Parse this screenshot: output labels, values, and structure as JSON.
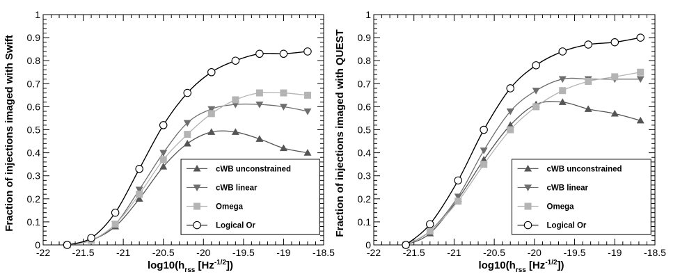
{
  "chart_data": [
    {
      "type": "line",
      "ylabel": "Fraction of injections imaged with Swift",
      "xlabel": {
        "pre": "log10(h",
        "sub": "rss",
        "mid": " [Hz",
        "sup": "-1/2",
        "post": "])"
      },
      "xlim": [
        -22,
        -18.5
      ],
      "ylim": [
        0,
        1
      ],
      "xticks": [
        "-22",
        "-21.5",
        "-21",
        "-20.5",
        "-20",
        "-19.5",
        "-19",
        "-18.5"
      ],
      "yticks": [
        "0",
        "0.1",
        "0.2",
        "0.3",
        "0.4",
        "0.5",
        "0.6",
        "0.7",
        "0.8",
        "0.9",
        "1"
      ],
      "legend_position": "bottom-right",
      "x": [
        -21.7,
        -21.4,
        -21.1,
        -20.8,
        -20.5,
        -20.2,
        -19.9,
        -19.6,
        -19.3,
        -19.0,
        -18.7
      ],
      "series": [
        {
          "name": "cWB unconstrained",
          "marker": "triangle-up",
          "color": "#555555",
          "values": [
            0.0,
            0.02,
            0.08,
            0.2,
            0.34,
            0.44,
            0.49,
            0.49,
            0.46,
            0.42,
            0.4
          ]
        },
        {
          "name": "cWB linear",
          "marker": "triangle-down",
          "color": "#6e6e6e",
          "values": [
            0.0,
            0.02,
            0.09,
            0.24,
            0.4,
            0.53,
            0.59,
            0.61,
            0.61,
            0.6,
            0.58
          ]
        },
        {
          "name": "Omega",
          "marker": "square",
          "color": "#b4b4b4",
          "values": [
            0.0,
            0.02,
            0.09,
            0.22,
            0.37,
            0.48,
            0.57,
            0.63,
            0.66,
            0.66,
            0.65
          ]
        },
        {
          "name": "Logical Or",
          "marker": "circle",
          "color": "#000000",
          "values": [
            0.0,
            0.03,
            0.14,
            0.33,
            0.52,
            0.66,
            0.75,
            0.8,
            0.83,
            0.83,
            0.84
          ]
        }
      ]
    },
    {
      "type": "line",
      "ylabel": "Fraction of injections imaged with QUEST",
      "xlabel": {
        "pre": "log10(h",
        "sub": "rss",
        "mid": " [Hz",
        "sup": "-1/2",
        "post": "])"
      },
      "xlim": [
        -22,
        -18.5
      ],
      "ylim": [
        0,
        1
      ],
      "xticks": [
        "-22",
        "-21.5",
        "-21",
        "-20.5",
        "-20",
        "-19.5",
        "-19",
        "-18.5"
      ],
      "yticks": [
        "0",
        "0.1",
        "0.2",
        "0.3",
        "0.4",
        "0.5",
        "0.6",
        "0.7",
        "0.8",
        "0.9",
        "1"
      ],
      "legend_position": "bottom-right",
      "x": [
        -21.6,
        -21.3,
        -20.95,
        -20.63,
        -20.3,
        -19.98,
        -19.65,
        -19.33,
        -19.0,
        -18.68
      ],
      "series": [
        {
          "name": "cWB unconstrained",
          "marker": "triangle-up",
          "color": "#555555",
          "values": [
            0.0,
            0.05,
            0.2,
            0.37,
            0.52,
            0.61,
            0.62,
            0.59,
            0.57,
            0.54
          ]
        },
        {
          "name": "cWB linear",
          "marker": "triangle-down",
          "color": "#6e6e6e",
          "values": [
            0.0,
            0.06,
            0.21,
            0.41,
            0.58,
            0.67,
            0.72,
            0.72,
            0.72,
            0.72
          ]
        },
        {
          "name": "Omega",
          "marker": "square",
          "color": "#b4b4b4",
          "values": [
            0.0,
            0.06,
            0.19,
            0.35,
            0.5,
            0.6,
            0.67,
            0.71,
            0.73,
            0.75
          ]
        },
        {
          "name": "Logical Or",
          "marker": "circle",
          "color": "#000000",
          "values": [
            0.0,
            0.09,
            0.28,
            0.5,
            0.68,
            0.78,
            0.84,
            0.87,
            0.88,
            0.9
          ]
        }
      ]
    }
  ]
}
